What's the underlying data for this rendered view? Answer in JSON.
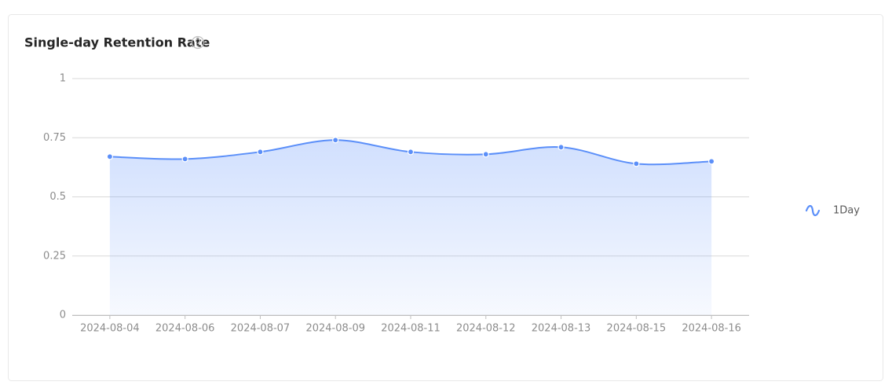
{
  "chart_data": {
    "type": "line",
    "title": "Single-day Retention Rate",
    "categories": [
      "2024-08-04",
      "2024-08-06",
      "2024-08-07",
      "2024-08-09",
      "2024-08-11",
      "2024-08-12",
      "2024-08-13",
      "2024-08-15",
      "2024-08-16"
    ],
    "series": [
      {
        "name": "1Day",
        "color": "#5b8ff9",
        "values": [
          0.67,
          0.66,
          0.69,
          0.74,
          0.69,
          0.68,
          0.71,
          0.64,
          0.65
        ]
      }
    ],
    "ylim": [
      0,
      1
    ],
    "yticks": [
      0,
      0.25,
      0.5,
      0.75,
      1
    ],
    "grid": true,
    "area": true,
    "smooth": true,
    "legend": "right"
  }
}
